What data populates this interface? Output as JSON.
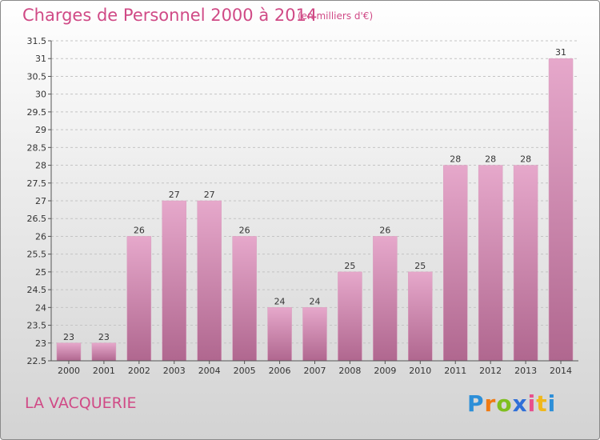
{
  "header": {
    "title": "Charges de Personnel 2000 à 2014",
    "subtitle": "(en milliers d'€)"
  },
  "footer": {
    "commune": "LA VACQUERIE",
    "logo": "Proxiti",
    "logo_colors": [
      "#2d8fd8",
      "#f07a12",
      "#7fbf1f",
      "#2f6fd8",
      "#e84f8c",
      "#f0b81c"
    ]
  },
  "chart_data": {
    "type": "bar",
    "categories": [
      "2000",
      "2001",
      "2002",
      "2003",
      "2004",
      "2005",
      "2006",
      "2007",
      "2008",
      "2009",
      "2010",
      "2011",
      "2012",
      "2013",
      "2014"
    ],
    "values": [
      23,
      23,
      26,
      27,
      27,
      26,
      24,
      24,
      25,
      26,
      25,
      28,
      28,
      28,
      31
    ],
    "value_labels": [
      "23",
      "23",
      "26",
      "27",
      "27",
      "26",
      "24",
      "24",
      "25",
      "26",
      "25",
      "28",
      "28",
      "28",
      "31"
    ],
    "y_ticks": [
      "22.5",
      "23",
      "23.5",
      "24",
      "24.5",
      "25",
      "25.5",
      "26",
      "26.5",
      "27",
      "27.5",
      "28",
      "28.5",
      "29",
      "29.5",
      "30",
      "30.5",
      "31",
      "31.5"
    ],
    "ylim": [
      22.5,
      31.5
    ],
    "ystep": 0.5,
    "grid": true,
    "bar_color_top": "#e6a8cb",
    "bar_color_bottom": "#b0678f"
  }
}
